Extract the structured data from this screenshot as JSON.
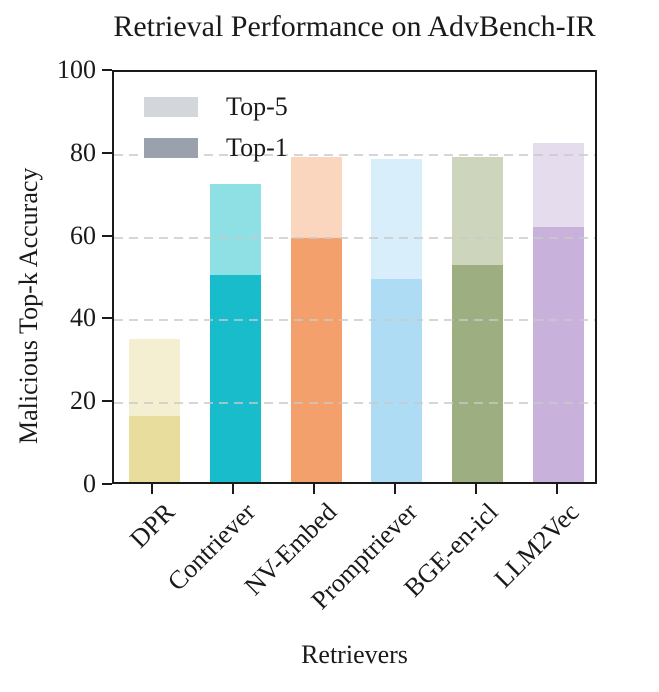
{
  "chart_data": {
    "type": "bar",
    "stacked": true,
    "title": "Retrieval Performance on AdvBench-IR",
    "xlabel": "Retrievers",
    "ylabel": "Malicious Top-k Accuracy",
    "categories": [
      "DPR",
      "Contriever",
      "NV-Embed",
      "Promptriever",
      "BGE-en-icl",
      "LLM2Vec"
    ],
    "series": [
      {
        "name": "Top-1",
        "values": [
          16,
          50,
          59,
          49,
          52.5,
          61.5
        ],
        "colors": [
          "#e9dd9d",
          "#19bcca",
          "#f4a06c",
          "#aedcf5",
          "#9dae80",
          "#c8b1db"
        ]
      },
      {
        "name": "Top-5",
        "values": [
          34.5,
          72,
          78.5,
          78,
          78.5,
          82
        ],
        "colors": [
          "#f5efd2",
          "#8fe0e4",
          "#f9d6bd",
          "#d9eefb",
          "#cdd6bd",
          "#e5dcee"
        ]
      }
    ],
    "top5_values_are_totals": true,
    "ylim": [
      0,
      100
    ],
    "yticks": [
      0,
      20,
      40,
      60,
      80,
      100
    ],
    "grid_values": [
      20,
      40,
      60,
      80
    ],
    "grid_style": "dashed horizontal",
    "legend": {
      "position": "upper-left",
      "entries": [
        {
          "label": "Top-5",
          "color": "#d3d7dc"
        },
        {
          "label": "Top-1",
          "color": "#9aa1ac"
        }
      ]
    },
    "colors": {
      "axis": "#1a1a1a",
      "grid": "#c9c9c9",
      "background": "#ffffff"
    }
  }
}
